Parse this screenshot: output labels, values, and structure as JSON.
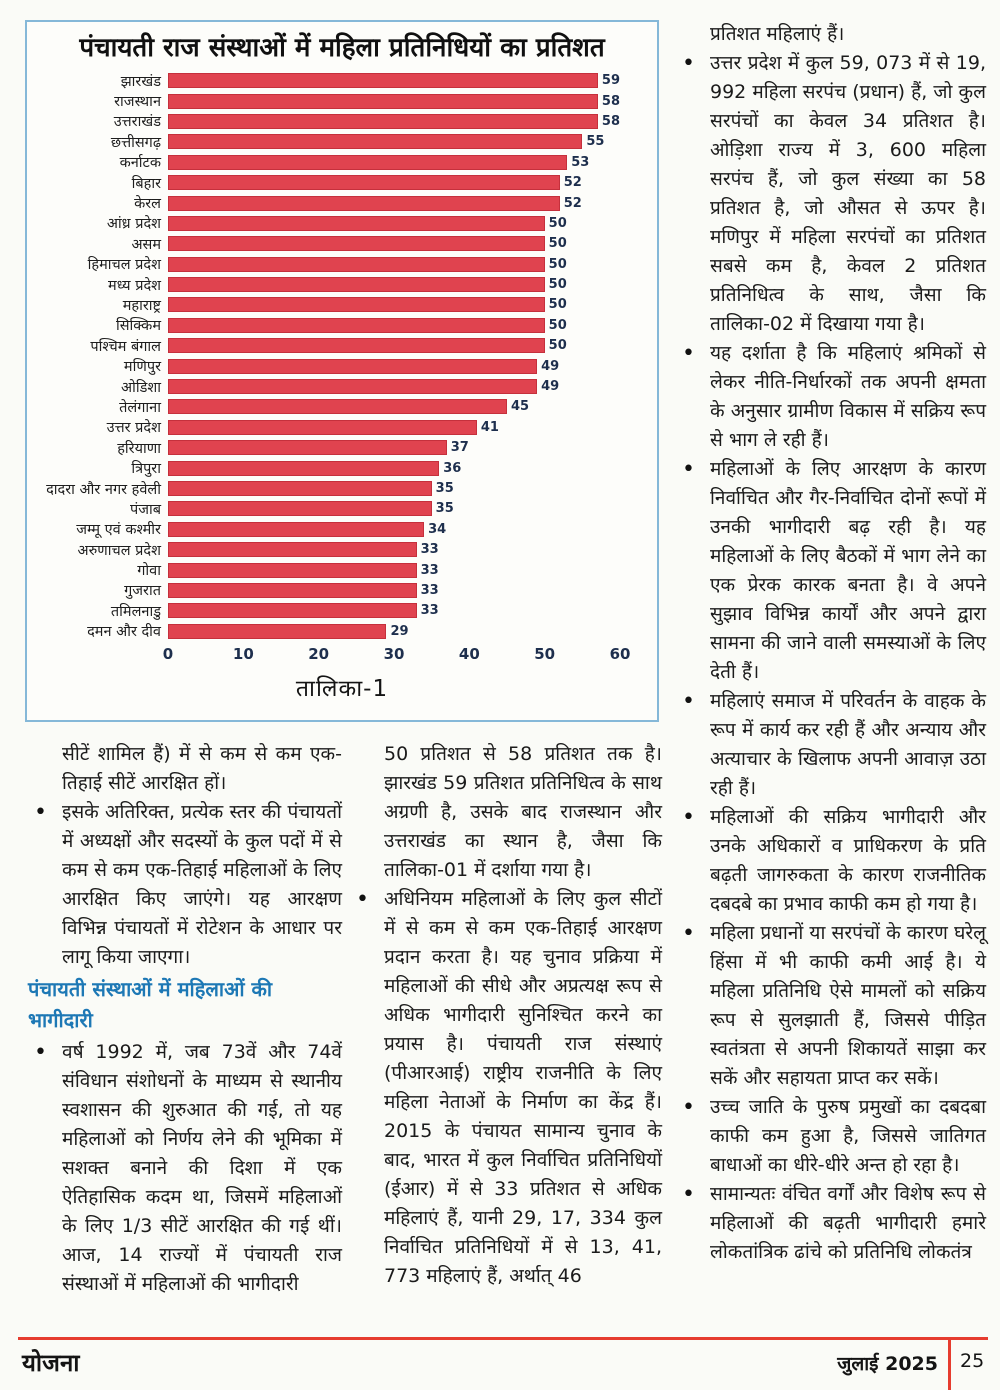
{
  "chart_data": {
    "type": "bar",
    "orientation": "horizontal",
    "title": "पंचायती राज संस्थाओं में महिला प्रतिनिधियों का प्रतिशत",
    "caption": "तालिका-1",
    "xlim": [
      0,
      60
    ],
    "x_ticks": [
      0,
      10,
      20,
      30,
      40,
      50,
      60
    ],
    "grid": false,
    "legend": false,
    "categories": [
      "झारखंड",
      "राजस्थान",
      "उत्तराखंड",
      "छत्तीसगढ़",
      "कर्नाटक",
      "बिहार",
      "केरल",
      "आंध्र प्रदेश",
      "असम",
      "हिमाचल प्रदेश",
      "मध्य प्रदेश",
      "महाराष्ट्र",
      "सिक्किम",
      "पश्चिम बंगाल",
      "मणिपुर",
      "ओडिशा",
      "तेलंगाना",
      "उत्तर प्रदेश",
      "हरियाणा",
      "त्रिपुरा",
      "दादरा और नगर हवेली",
      "पंजाब",
      "जम्मू एवं कश्मीर",
      "अरुणाचल प्रदेश",
      "गोवा",
      "गुजरात",
      "तमिलनाडु",
      "दमन और दीव"
    ],
    "values": [
      59,
      58,
      58,
      55,
      53,
      52,
      52,
      50,
      50,
      50,
      50,
      50,
      50,
      50,
      49,
      49,
      45,
      41,
      37,
      36,
      35,
      35,
      34,
      33,
      33,
      33,
      33,
      29
    ],
    "bar_color": "#e0434f",
    "value_label_color": "#1e2f4d"
  },
  "columns": {
    "left": [
      {
        "bullet": false,
        "text": "सीटें शामिल हैं) में से कम से कम एक-तिहाई सीटें आरक्षित हों।"
      },
      {
        "bullet": true,
        "text": "इसके अतिरिक्त, प्रत्येक स्तर की पंचायतों में अध्यक्षों और सदस्यों के कुल पदों में से कम से कम एक-तिहाई महिलाओं के लिए आरक्षित किए जाएंगे। यह आरक्षण विभिन्न पंचायतों में रोटेशन के आधार पर लागू किया जाएगा।"
      },
      {
        "heading": true,
        "text": "पंचायती संस्थाओं में महिलाओं की भागीदारी"
      },
      {
        "bullet": true,
        "text": "वर्ष 1992 में, जब 73वें और 74वें संविधान संशोधनों के माध्यम से स्थानीय स्वशासन की शुरुआत की गई, तो यह महिलाओं को निर्णय लेने की भूमिका में सशक्त बनाने की दिशा में एक ऐतिहासिक कदम था, जिसमें महिलाओं के लिए 1/3 सीटें आरक्षित की गई थीं। आज, 14 राज्यों में पंचायती राज संस्थाओं में महिलाओं की भागीदारी"
      }
    ],
    "middle": [
      {
        "bullet": false,
        "text": "50 प्रतिशत से 58 प्रतिशत तक है। झारखंड 59 प्रतिशत प्रतिनिधित्व के साथ अग्रणी है, उसके बाद राजस्थान और उत्तराखंड का स्थान है, जैसा कि तालिका-01 में दर्शाया गया है।"
      },
      {
        "bullet": true,
        "text": "अधिनियम महिलाओं के लिए कुल सीटों में से कम से कम एक-तिहाई आरक्षण प्रदान करता है। यह चुनाव प्रक्रिया में महिलाओं की सीधे और अप्रत्यक्ष रूप से अधिक भागीदारी सुनिश्चित करने का प्रयास है। पंचायती राज संस्थाएं (पीआरआई) राष्ट्रीय राजनीति के लिए महिला नेताओं के निर्माण का केंद्र हैं। 2015 के पंचायत सामान्य चुनाव के बाद, भारत में कुल निर्वाचित प्रतिनिधियों (ईआर) में से 33 प्रतिशत से अधिक महिलाएं हैं, यानी 29, 17, 334 कुल निर्वाचित प्रतिनिधियों में से 13, 41, 773 महिलाएं हैं, अर्थात् 46"
      }
    ],
    "right": [
      {
        "bullet": false,
        "text": "प्रतिशत महिलाएं हैं।"
      },
      {
        "bullet": true,
        "text": "उत्तर प्रदेश में कुल 59, 073 में से 19, 992 महिला सरपंच (प्रधान) हैं, जो कुल सरपंचों का केवल 34 प्रतिशत है। ओड़िशा राज्य में 3, 600 महिला सरपंच हैं, जो कुल संख्या का 58 प्रतिशत है, जो औसत से ऊपर है। मणिपुर में महिला सरपंचों का प्रतिशत सबसे कम है, केवल 2 प्रतिशत प्रतिनिधित्व के साथ, जैसा कि तालिका-02 में दिखाया गया है।"
      },
      {
        "bullet": true,
        "text": "यह दर्शाता है कि महिलाएं श्रमिकों से लेकर नीति-निर्धारकों तक अपनी क्षमता के अनुसार ग्रामीण विकास में सक्रिय रूप से भाग ले रही हैं।"
      },
      {
        "bullet": true,
        "text": "महिलाओं के लिए आरक्षण के कारण निर्वाचित और गैर-निर्वाचित दोनों रूपों में उनकी भागीदारी बढ़ रही है। यह महिलाओं के लिए बैठकों में भाग लेने का एक प्रेरक कारक बनता है। वे अपने सुझाव विभिन्न कार्यों और अपने द्वारा सामना की जाने वाली समस्याओं के लिए देती हैं।"
      },
      {
        "bullet": true,
        "text": "महिलाएं समाज में परिवर्तन के वाहक के रूप में कार्य कर रही हैं और अन्याय और अत्याचार के खिलाफ अपनी आवाज़ उठा रही हैं।"
      },
      {
        "bullet": true,
        "text": "महिलाओं की सक्रिय भागीदारी और उनके अधिकारों व प्राधिकरण के प्रति बढ़ती जागरुकता के कारण राजनीतिक दबदबे का प्रभाव काफी कम हो गया है।"
      },
      {
        "bullet": true,
        "text": "महिला प्रधानों या सरपंचों के कारण घरेलू हिंसा में भी काफी कमी आई है। ये महिला प्रतिनिधि ऐसे मामलों को सक्रिय रूप से सुलझाती हैं, जिससे पीड़ित स्वतंत्रता से अपनी शिकायतें साझा कर सकें और सहायता प्राप्त कर सकें।"
      },
      {
        "bullet": true,
        "text": "उच्च जाति के पुरुष प्रमुखों का दबदबा काफी कम हुआ है, जिससे जातिगत बाधाओं का धीरे-धीरे अन्त हो रहा है।"
      },
      {
        "bullet": true,
        "text": "सामान्यतः वंचित वर्गों और विशेष रूप से महिलाओं की बढ़ती भागीदारी हमारे लोकतांत्रिक ढांचे को प्रतिनिधि लोकतंत्र"
      }
    ]
  },
  "footer": {
    "magazine": "योजना",
    "issue": "जुलाई 2025",
    "page_number": "25",
    "accent_color": "#e63c2f"
  }
}
